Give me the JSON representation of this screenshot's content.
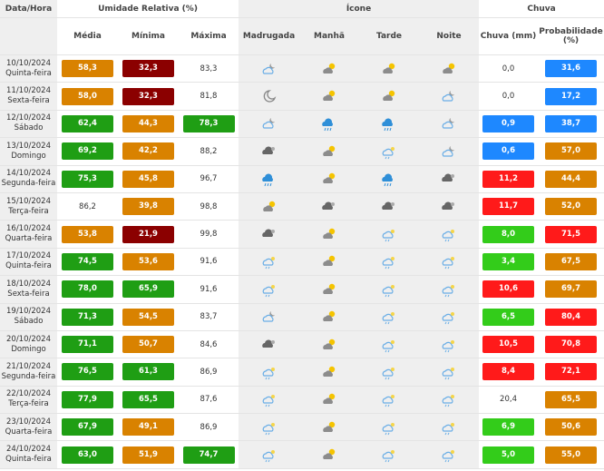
{
  "header": {
    "date_time": "Data/Hora",
    "humidity": "Umidade Relativa (%)",
    "icon": "Ícone",
    "rain": "Chuva",
    "columns": [
      "Média",
      "Mínima",
      "Máxima",
      "Madrugada",
      "Manhã",
      "Tarde",
      "Noite",
      "Chuva (mm)",
      "Probabilidade (%)"
    ]
  },
  "rows": [
    {
      "date": "10/10/2024",
      "weekday": "Quinta-feira",
      "values": [
        "58,3",
        "32,3",
        "83,3",
        "0,0",
        "31,6"
      ],
      "colors": [
        "#d98200",
        "#8b0000",
        null,
        null,
        "#1e88ff"
      ]
    },
    {
      "date": "11/10/2024",
      "weekday": "Sexta-feira",
      "values": [
        "58,0",
        "32,3",
        "81,8",
        "0,0",
        "17,2"
      ],
      "colors": [
        "#d98200",
        "#8b0000",
        null,
        null,
        "#1e88ff"
      ]
    },
    {
      "date": "12/10/2024",
      "weekday": "Sábado",
      "values": [
        "62,4",
        "44,3",
        "78,3",
        "0,9",
        "38,7"
      ],
      "colors": [
        "#1f9e14",
        "#d98200",
        "#1f9e14",
        "#1e88ff",
        "#1e88ff"
      ]
    },
    {
      "date": "13/10/2024",
      "weekday": "Domingo",
      "values": [
        "69,2",
        "42,2",
        "88,2",
        "0,6",
        "57,0"
      ],
      "colors": [
        "#1f9e14",
        "#d98200",
        null,
        "#1e88ff",
        "#d98200"
      ]
    },
    {
      "date": "14/10/2024",
      "weekday": "Segunda-feira",
      "values": [
        "75,3",
        "45,8",
        "96,7",
        "11,2",
        "44,4"
      ],
      "colors": [
        "#1f9e14",
        "#d98200",
        null,
        "#ff1a1a",
        "#d98200"
      ]
    },
    {
      "date": "15/10/2024",
      "weekday": "Terça-feira",
      "values": [
        "86,2",
        "39,8",
        "98,8",
        "11,7",
        "52,0"
      ],
      "colors": [
        null,
        "#d98200",
        null,
        "#ff1a1a",
        "#d98200"
      ]
    },
    {
      "date": "16/10/2024",
      "weekday": "Quarta-feira",
      "values": [
        "53,8",
        "21,9",
        "99,8",
        "8,0",
        "71,5"
      ],
      "colors": [
        "#d98200",
        "#8b0000",
        null,
        "#33cc1a",
        "#ff1a1a"
      ]
    },
    {
      "date": "17/10/2024",
      "weekday": "Quinta-feira",
      "values": [
        "74,5",
        "53,6",
        "91,6",
        "3,4",
        "67,5"
      ],
      "colors": [
        "#1f9e14",
        "#d98200",
        null,
        "#33cc1a",
        "#d98200"
      ]
    },
    {
      "date": "18/10/2024",
      "weekday": "Sexta-feira",
      "values": [
        "78,0",
        "65,9",
        "91,6",
        "10,6",
        "69,7"
      ],
      "colors": [
        "#1f9e14",
        "#1f9e14",
        null,
        "#ff1a1a",
        "#d98200"
      ]
    },
    {
      "date": "19/10/2024",
      "weekday": "Sábado",
      "values": [
        "71,3",
        "54,5",
        "83,7",
        "6,5",
        "80,4"
      ],
      "colors": [
        "#1f9e14",
        "#d98200",
        null,
        "#33cc1a",
        "#ff1a1a"
      ]
    },
    {
      "date": "20/10/2024",
      "weekday": "Domingo",
      "values": [
        "71,1",
        "50,7",
        "84,6",
        "10,5",
        "70,8"
      ],
      "colors": [
        "#1f9e14",
        "#d98200",
        null,
        "#ff1a1a",
        "#ff1a1a"
      ]
    },
    {
      "date": "21/10/2024",
      "weekday": "Segunda-feira",
      "values": [
        "76,5",
        "61,3",
        "86,9",
        "8,4",
        "72,1"
      ],
      "colors": [
        "#1f9e14",
        "#1f9e14",
        null,
        "#ff1a1a",
        "#ff1a1a"
      ]
    },
    {
      "date": "22/10/2024",
      "weekday": "Terça-feira",
      "values": [
        "77,9",
        "65,5",
        "87,6",
        "20,4",
        "65,5"
      ],
      "colors": [
        "#1f9e14",
        "#1f9e14",
        null,
        null,
        "#d98200"
      ]
    },
    {
      "date": "23/10/2024",
      "weekday": "Quarta-feira",
      "values": [
        "67,9",
        "49,1",
        "86,9",
        "6,9",
        "50,6"
      ],
      "colors": [
        "#1f9e14",
        "#d98200",
        null,
        "#33cc1a",
        "#d98200"
      ]
    },
    {
      "date": "24/10/2024",
      "weekday": "Quinta-feira",
      "values": [
        "63,0",
        "51,9",
        "74,7",
        "5,0",
        "55,0"
      ],
      "colors": [
        "#1f9e14",
        "#d98200",
        "#1f9e14",
        "#33cc1a",
        "#d98200"
      ]
    }
  ]
}
